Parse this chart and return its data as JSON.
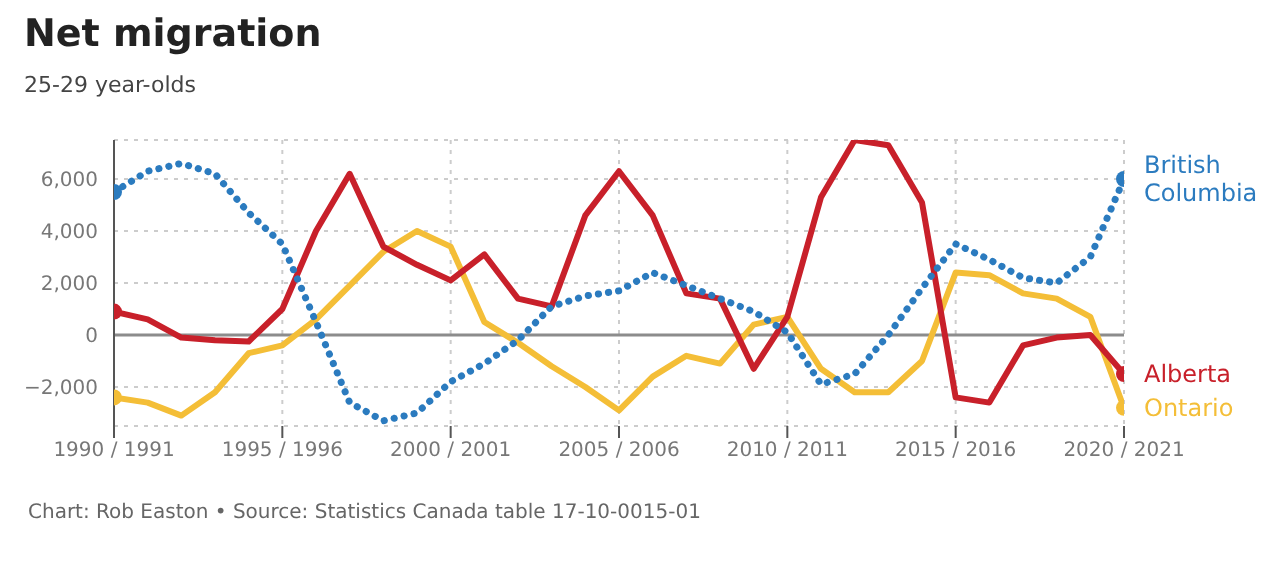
{
  "chart_data": {
    "type": "line",
    "title": "Net migration",
    "subtitle": "25-29 year-olds",
    "categories": [
      "1990 / 1991",
      null,
      null,
      null,
      null,
      "1995 / 1996",
      null,
      null,
      null,
      null,
      "2000 / 2001",
      null,
      null,
      null,
      null,
      "2005 / 2006",
      null,
      null,
      null,
      null,
      "2010 / 2011",
      null,
      null,
      null,
      null,
      "2015 / 2016",
      null,
      null,
      null,
      null,
      "2020 / 2021"
    ],
    "series": [
      {
        "name": "British Columbia",
        "color": "#2b7bbf",
        "line_style": "dotted",
        "values": [
          5500,
          6300,
          6600,
          6200,
          4700,
          3500,
          500,
          -2600,
          -3300,
          -3000,
          -1800,
          -1100,
          -200,
          1100,
          1500,
          1700,
          2400,
          1900,
          1400,
          900,
          100,
          -1900,
          -1500,
          0,
          1800,
          3500,
          2900,
          2200,
          2000,
          3000,
          6000
        ]
      },
      {
        "name": "Alberta",
        "color": "#c8202a",
        "line_style": "solid",
        "values": [
          900,
          600,
          -100,
          -200,
          -250,
          1000,
          4000,
          6200,
          3400,
          2700,
          2100,
          3100,
          1400,
          1100,
          4600,
          6300,
          4600,
          1600,
          1400,
          -1300,
          700,
          5300,
          7500,
          7300,
          5100,
          -2400,
          -2600,
          -400,
          -100,
          0,
          -1500
        ]
      },
      {
        "name": "Ontario",
        "color": "#f4be37",
        "line_style": "solid",
        "values": [
          -2400,
          -2600,
          -3100,
          -2200,
          -700,
          -400,
          600,
          1900,
          3200,
          4000,
          3400,
          500,
          -300,
          -1200,
          -2000,
          -2900,
          -1600,
          -800,
          -1100,
          400,
          700,
          -1300,
          -2200,
          -2200,
          -1000,
          2400,
          2300,
          1600,
          1400,
          700,
          -2800
        ]
      }
    ],
    "ylim": [
      -3500,
      7500
    ],
    "yticks": [
      {
        "value": -2000,
        "label": "−2,000"
      },
      0,
      {
        "value": 2000,
        "label": "2,000"
      },
      {
        "value": 4000,
        "label": "4,000"
      },
      {
        "value": 6000,
        "label": "6,000"
      }
    ],
    "grid": true,
    "ref_lines": [
      {
        "axis": "y",
        "value": 0,
        "color": "#8c8c8c"
      }
    ],
    "annotations": [
      "Chart: Rob Easton • Source: Statistics Canada table 17-10-0015-01"
    ]
  }
}
